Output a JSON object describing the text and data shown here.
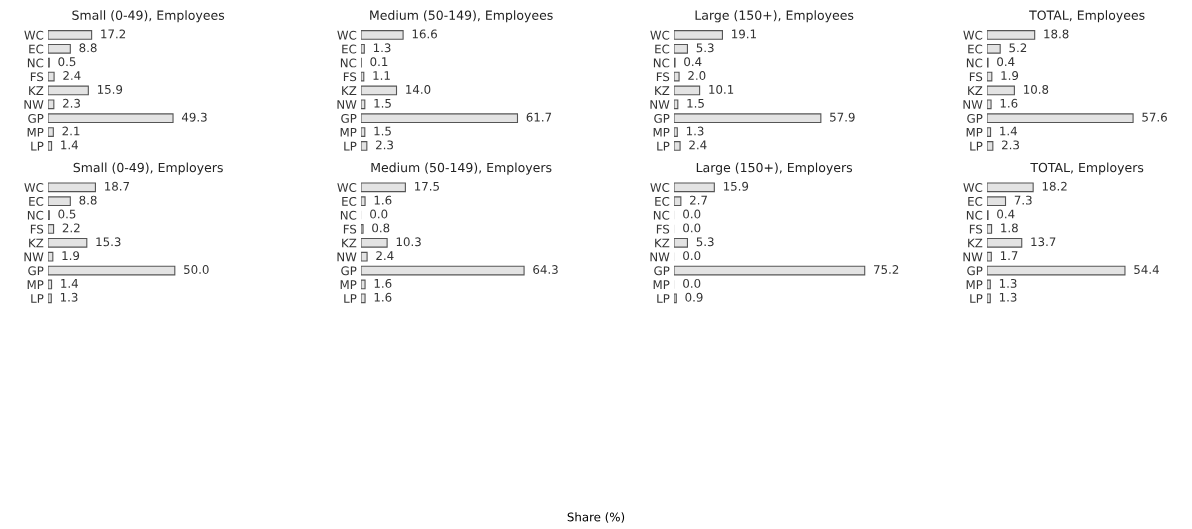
{
  "chart_data": [
    {
      "type": "bar",
      "orientation": "horizontal",
      "title": "Small (0-49), Employees",
      "categories": [
        "WC",
        "EC",
        "NC",
        "FS",
        "KZ",
        "NW",
        "GP",
        "MP",
        "LP"
      ],
      "values": [
        17.2,
        8.8,
        0.5,
        2.4,
        15.9,
        2.3,
        49.3,
        2.1,
        1.4
      ],
      "value_labels": [
        "17.2",
        "8.8",
        "0.5",
        "2.4",
        "15.9",
        "2.3",
        "49.3",
        "2.1",
        "1.4"
      ],
      "color": "#e3e3e3",
      "tick_labels": "y"
    },
    {
      "type": "bar",
      "orientation": "horizontal",
      "title": "Medium (50-149), Employees",
      "categories": [
        "WC",
        "EC",
        "NC",
        "FS",
        "KZ",
        "NW",
        "GP",
        "MP",
        "LP"
      ],
      "values": [
        16.6,
        1.3,
        0.1,
        1.1,
        14.0,
        1.5,
        61.7,
        1.5,
        2.3
      ],
      "value_labels": [
        "16.6",
        "1.3",
        "0.1",
        "1.1",
        "14.0",
        "1.5",
        "61.7",
        "1.5",
        "2.3"
      ],
      "color": "#e3e3e3",
      "tick_labels": "y"
    },
    {
      "type": "bar",
      "orientation": "horizontal",
      "title": "Large (150+), Employees",
      "categories": [
        "WC",
        "EC",
        "NC",
        "FS",
        "KZ",
        "NW",
        "GP",
        "MP",
        "LP"
      ],
      "values": [
        19.1,
        5.3,
        0.4,
        2.0,
        10.1,
        1.5,
        57.9,
        1.3,
        2.4
      ],
      "value_labels": [
        "19.1",
        "5.3",
        "0.4",
        "2.0",
        "10.1",
        "1.5",
        "57.9",
        "1.3",
        "2.4"
      ],
      "color": "#e3e3e3",
      "tick_labels": "y"
    },
    {
      "type": "bar",
      "orientation": "horizontal",
      "title": "TOTAL, Employees",
      "categories": [
        "WC",
        "EC",
        "NC",
        "FS",
        "KZ",
        "NW",
        "GP",
        "MP",
        "LP"
      ],
      "values": [
        18.8,
        5.2,
        0.4,
        1.9,
        10.8,
        1.6,
        57.6,
        1.4,
        2.3
      ],
      "value_labels": [
        "18.8",
        "5.2",
        "0.4",
        "1.9",
        "10.8",
        "1.6",
        "57.6",
        "1.4",
        "2.3"
      ],
      "color": "#e3e3e3",
      "tick_labels": "y"
    },
    {
      "type": "bar",
      "orientation": "horizontal",
      "title": "Small (0-49), Employers",
      "categories": [
        "WC",
        "EC",
        "NC",
        "FS",
        "KZ",
        "NW",
        "GP",
        "MP",
        "LP"
      ],
      "values": [
        18.7,
        8.8,
        0.5,
        2.2,
        15.3,
        1.9,
        50.0,
        1.4,
        1.3
      ],
      "value_labels": [
        "18.7",
        "8.8",
        "0.5",
        "2.2",
        "15.3",
        "1.9",
        "50.0",
        "1.4",
        "1.3"
      ],
      "color": "#e3e3e3",
      "tick_labels": "y"
    },
    {
      "type": "bar",
      "orientation": "horizontal",
      "title": "Medium (50-149), Employers",
      "categories": [
        "WC",
        "EC",
        "NC",
        "FS",
        "KZ",
        "NW",
        "GP",
        "MP",
        "LP"
      ],
      "values": [
        17.5,
        1.6,
        0.0,
        0.8,
        10.3,
        2.4,
        64.3,
        1.6,
        1.6
      ],
      "value_labels": [
        "17.5",
        "1.6",
        "0.0",
        "0.8",
        "10.3",
        "2.4",
        "64.3",
        "1.6",
        "1.6"
      ],
      "color": "#e3e3e3",
      "tick_labels": "y",
      "xlabel": "Share (%)"
    },
    {
      "type": "bar",
      "orientation": "horizontal",
      "title": "Large (150+), Employers",
      "categories": [
        "WC",
        "EC",
        "NC",
        "FS",
        "KZ",
        "NW",
        "GP",
        "MP",
        "LP"
      ],
      "values": [
        15.9,
        2.7,
        0.0,
        0.0,
        5.3,
        0.0,
        75.2,
        0.0,
        0.9
      ],
      "value_labels": [
        "15.9",
        "2.7",
        "0.0",
        "0.0",
        "5.3",
        "0.0",
        "75.2",
        "0.0",
        "0.9"
      ],
      "color": "#e3e3e3",
      "tick_labels": "y"
    },
    {
      "type": "bar",
      "orientation": "horizontal",
      "title": "TOTAL, Employers",
      "categories": [
        "WC",
        "EC",
        "NC",
        "FS",
        "KZ",
        "NW",
        "GP",
        "MP",
        "LP"
      ],
      "values": [
        18.2,
        7.3,
        0.4,
        1.8,
        13.7,
        1.7,
        54.4,
        1.3,
        1.3
      ],
      "value_labels": [
        "18.2",
        "7.3",
        "0.4",
        "1.8",
        "13.7",
        "1.7",
        "54.4",
        "1.3",
        "1.3"
      ],
      "color": "#e3e3e3",
      "tick_labels": "y"
    }
  ]
}
